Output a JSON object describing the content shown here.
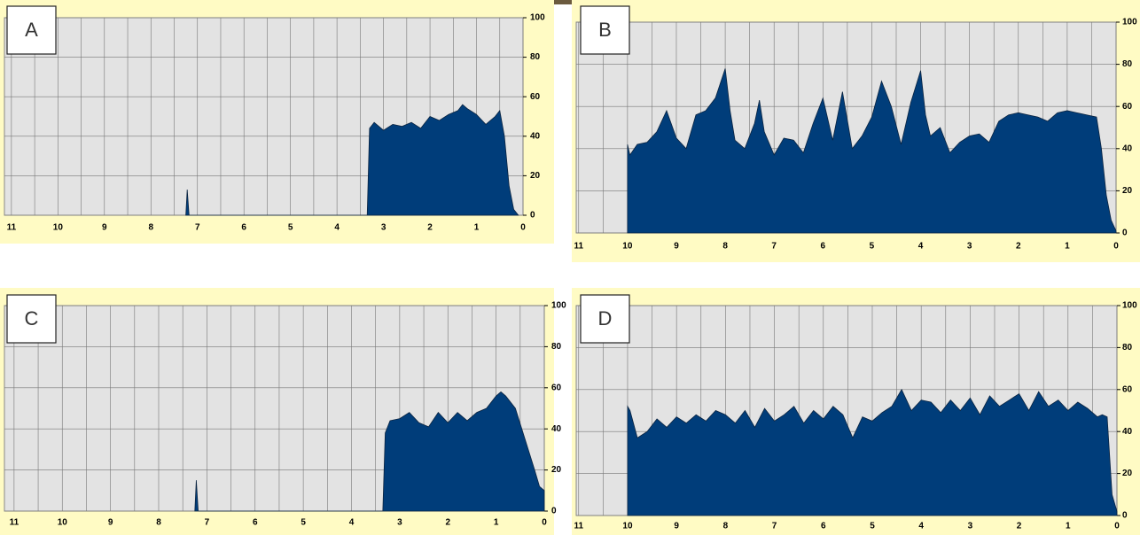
{
  "chart_data": [
    {
      "type": "area",
      "label": "A",
      "color": "#003d7a",
      "grid": true,
      "xlim": [
        11.15,
        0
      ],
      "ylim": [
        0,
        100
      ],
      "xticks": [
        11,
        10,
        9,
        8,
        7,
        6,
        5,
        4,
        3,
        2,
        1,
        0
      ],
      "yticks": [
        0,
        20,
        40,
        60,
        80,
        100
      ],
      "x": [
        7.25,
        7.22,
        7.18,
        3.35,
        3.3,
        3.2,
        3.0,
        2.8,
        2.6,
        2.4,
        2.2,
        2.0,
        1.8,
        1.6,
        1.4,
        1.3,
        1.2,
        1.0,
        0.8,
        0.6,
        0.5,
        0.4,
        0.3,
        0.2,
        0.1
      ],
      "values": [
        0,
        13,
        0,
        0,
        44,
        47,
        43,
        46,
        45,
        47,
        44,
        50,
        48,
        51,
        53,
        56,
        54,
        51,
        46,
        50,
        53,
        40,
        15,
        3,
        0
      ]
    },
    {
      "type": "area",
      "label": "B",
      "color": "#003d7a",
      "grid": true,
      "xlim": [
        11.05,
        0
      ],
      "ylim": [
        0,
        100
      ],
      "xticks": [
        11,
        10,
        9,
        8,
        7,
        6,
        5,
        4,
        3,
        2,
        1,
        0
      ],
      "yticks": [
        0,
        20,
        40,
        60,
        80,
        100
      ],
      "x": [
        10,
        9.95,
        9.8,
        9.6,
        9.4,
        9.2,
        9.0,
        8.8,
        8.6,
        8.4,
        8.2,
        8.0,
        7.9,
        7.8,
        7.6,
        7.4,
        7.3,
        7.2,
        7.0,
        6.8,
        6.6,
        6.4,
        6.2,
        6.0,
        5.8,
        5.6,
        5.4,
        5.2,
        5.0,
        4.8,
        4.6,
        4.4,
        4.2,
        4.0,
        3.9,
        3.8,
        3.6,
        3.4,
        3.2,
        3.0,
        2.8,
        2.6,
        2.4,
        2.2,
        2.0,
        1.8,
        1.6,
        1.4,
        1.2,
        1.0,
        0.8,
        0.6,
        0.4,
        0.3,
        0.2,
        0.1,
        0
      ],
      "values": [
        42,
        37,
        42,
        43,
        48,
        58,
        45,
        40,
        56,
        58,
        64,
        78,
        58,
        44,
        40,
        52,
        63,
        48,
        37,
        45,
        44,
        38,
        52,
        64,
        44,
        67,
        40,
        46,
        55,
        72,
        60,
        42,
        62,
        77,
        56,
        46,
        50,
        38,
        43,
        46,
        47,
        43,
        53,
        56,
        57,
        56,
        55,
        53,
        57,
        58,
        57,
        56,
        55,
        40,
        18,
        6,
        1
      ]
    },
    {
      "type": "area",
      "label": "C",
      "color": "#003d7a",
      "grid": true,
      "xlim": [
        11.2,
        0
      ],
      "ylim": [
        0,
        100
      ],
      "xticks": [
        11,
        10,
        9,
        8,
        7,
        6,
        5,
        4,
        3,
        2,
        1,
        0
      ],
      "yticks": [
        0,
        20,
        40,
        60,
        80,
        100
      ],
      "x": [
        7.25,
        7.22,
        7.18,
        3.35,
        3.3,
        3.2,
        3.0,
        2.8,
        2.6,
        2.4,
        2.2,
        2.0,
        1.8,
        1.6,
        1.4,
        1.2,
        1.0,
        0.9,
        0.8,
        0.6,
        0.4,
        0.2,
        0.1,
        0
      ],
      "values": [
        0,
        15,
        0,
        0,
        38,
        44,
        45,
        48,
        43,
        41,
        48,
        43,
        48,
        44,
        48,
        50,
        56,
        58,
        56,
        50,
        35,
        20,
        12,
        10
      ]
    },
    {
      "type": "area",
      "label": "D",
      "color": "#003d7a",
      "grid": true,
      "xlim": [
        11.05,
        0
      ],
      "ylim": [
        0,
        100
      ],
      "xticks": [
        11,
        10,
        9,
        8,
        7,
        6,
        5,
        4,
        3,
        2,
        1,
        0
      ],
      "yticks": [
        0,
        20,
        40,
        60,
        80,
        100
      ],
      "x": [
        10,
        9.95,
        9.8,
        9.6,
        9.4,
        9.2,
        9.0,
        8.8,
        8.6,
        8.4,
        8.2,
        8.0,
        7.8,
        7.6,
        7.4,
        7.2,
        7.0,
        6.8,
        6.6,
        6.4,
        6.2,
        6.0,
        5.8,
        5.6,
        5.4,
        5.2,
        5.0,
        4.8,
        4.6,
        4.4,
        4.2,
        4.0,
        3.8,
        3.6,
        3.4,
        3.2,
        3.0,
        2.8,
        2.6,
        2.4,
        2.2,
        2.0,
        1.8,
        1.6,
        1.4,
        1.2,
        1.0,
        0.8,
        0.6,
        0.4,
        0.3,
        0.2,
        0.1,
        0
      ],
      "values": [
        52,
        50,
        37,
        40,
        46,
        42,
        47,
        44,
        48,
        45,
        50,
        48,
        44,
        50,
        42,
        51,
        45,
        48,
        52,
        44,
        50,
        46,
        52,
        48,
        37,
        47,
        45,
        49,
        52,
        60,
        50,
        55,
        54,
        49,
        55,
        50,
        56,
        48,
        57,
        52,
        55,
        58,
        50,
        59,
        52,
        55,
        50,
        54,
        51,
        47,
        48,
        47,
        10,
        2
      ]
    }
  ]
}
